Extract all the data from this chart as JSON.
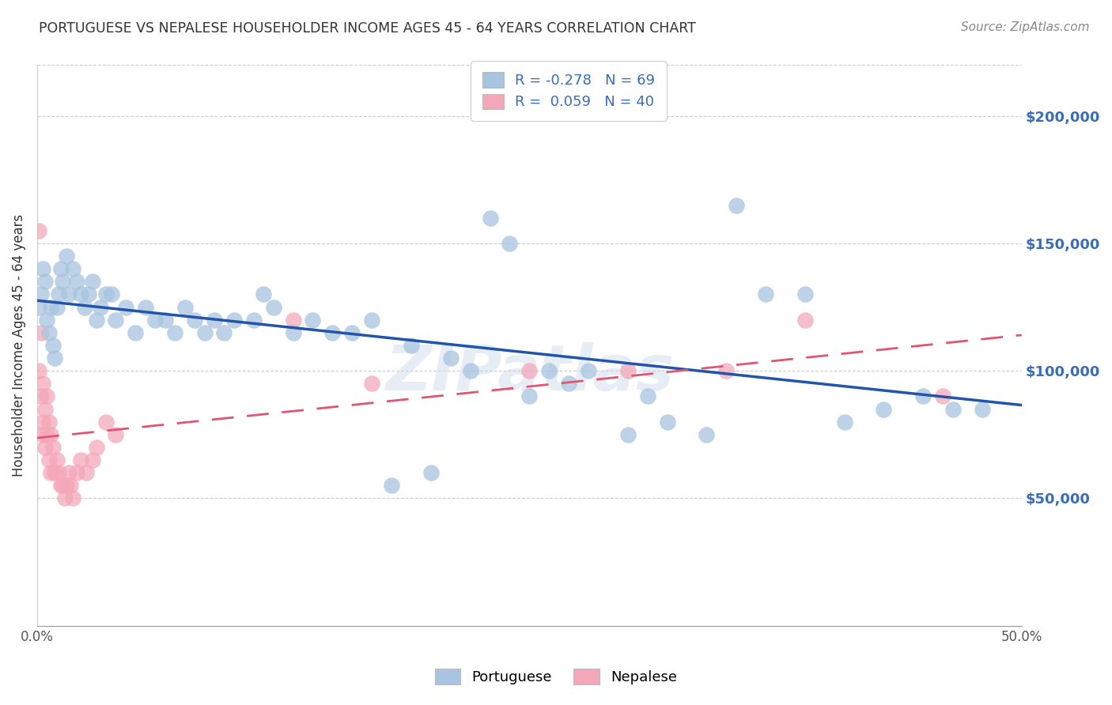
{
  "title": "PORTUGUESE VS NEPALESE HOUSEHOLDER INCOME AGES 45 - 64 YEARS CORRELATION CHART",
  "source": "Source: ZipAtlas.com",
  "ylabel": "Householder Income Ages 45 - 64 years",
  "xlim": [
    0.0,
    0.5
  ],
  "ylim": [
    0,
    220000
  ],
  "xtick_positions": [
    0.0,
    0.1,
    0.2,
    0.3,
    0.4,
    0.5
  ],
  "xticklabels": [
    "0.0%",
    "",
    "",
    "",
    "",
    "50.0%"
  ],
  "yticks_right": [
    50000,
    100000,
    150000,
    200000
  ],
  "ytick_labels_right": [
    "$50,000",
    "$100,000",
    "$150,000",
    "$200,000"
  ],
  "portuguese_R": -0.278,
  "portuguese_N": 69,
  "nepalese_R": 0.059,
  "nepalese_N": 40,
  "portuguese_color": "#a8c4e0",
  "nepalese_color": "#f4a7b9",
  "portuguese_line_color": "#2255aa",
  "nepalese_line_color": "#e05570",
  "nepalese_line_style": "dashed",
  "watermark": "ZIPatlas",
  "portuguese_scatter_x": [
    0.001,
    0.002,
    0.003,
    0.004,
    0.005,
    0.006,
    0.007,
    0.008,
    0.009,
    0.01,
    0.011,
    0.012,
    0.013,
    0.015,
    0.016,
    0.018,
    0.02,
    0.022,
    0.024,
    0.026,
    0.028,
    0.03,
    0.032,
    0.035,
    0.038,
    0.04,
    0.045,
    0.05,
    0.055,
    0.06,
    0.065,
    0.07,
    0.075,
    0.08,
    0.085,
    0.09,
    0.095,
    0.1,
    0.11,
    0.115,
    0.12,
    0.13,
    0.14,
    0.15,
    0.16,
    0.17,
    0.18,
    0.19,
    0.2,
    0.21,
    0.22,
    0.23,
    0.24,
    0.25,
    0.26,
    0.27,
    0.28,
    0.3,
    0.31,
    0.32,
    0.34,
    0.355,
    0.37,
    0.39,
    0.41,
    0.43,
    0.45,
    0.465,
    0.48
  ],
  "portuguese_scatter_y": [
    125000,
    130000,
    140000,
    135000,
    120000,
    115000,
    125000,
    110000,
    105000,
    125000,
    130000,
    140000,
    135000,
    145000,
    130000,
    140000,
    135000,
    130000,
    125000,
    130000,
    135000,
    120000,
    125000,
    130000,
    130000,
    120000,
    125000,
    115000,
    125000,
    120000,
    120000,
    115000,
    125000,
    120000,
    115000,
    120000,
    115000,
    120000,
    120000,
    130000,
    125000,
    115000,
    120000,
    115000,
    115000,
    120000,
    55000,
    110000,
    60000,
    105000,
    100000,
    160000,
    150000,
    90000,
    100000,
    95000,
    100000,
    75000,
    90000,
    80000,
    75000,
    165000,
    130000,
    130000,
    80000,
    85000,
    90000,
    85000,
    85000
  ],
  "nepalese_scatter_x": [
    0.001,
    0.001,
    0.002,
    0.002,
    0.003,
    0.003,
    0.003,
    0.004,
    0.004,
    0.005,
    0.005,
    0.006,
    0.006,
    0.007,
    0.007,
    0.008,
    0.009,
    0.01,
    0.011,
    0.012,
    0.013,
    0.014,
    0.015,
    0.016,
    0.017,
    0.018,
    0.02,
    0.022,
    0.025,
    0.028,
    0.03,
    0.035,
    0.04,
    0.13,
    0.17,
    0.25,
    0.3,
    0.35,
    0.39,
    0.46
  ],
  "nepalese_scatter_y": [
    155000,
    100000,
    115000,
    90000,
    95000,
    80000,
    75000,
    85000,
    70000,
    90000,
    75000,
    80000,
    65000,
    75000,
    60000,
    70000,
    60000,
    65000,
    60000,
    55000,
    55000,
    50000,
    55000,
    60000,
    55000,
    50000,
    60000,
    65000,
    60000,
    65000,
    70000,
    80000,
    75000,
    120000,
    95000,
    100000,
    100000,
    100000,
    120000,
    90000
  ]
}
